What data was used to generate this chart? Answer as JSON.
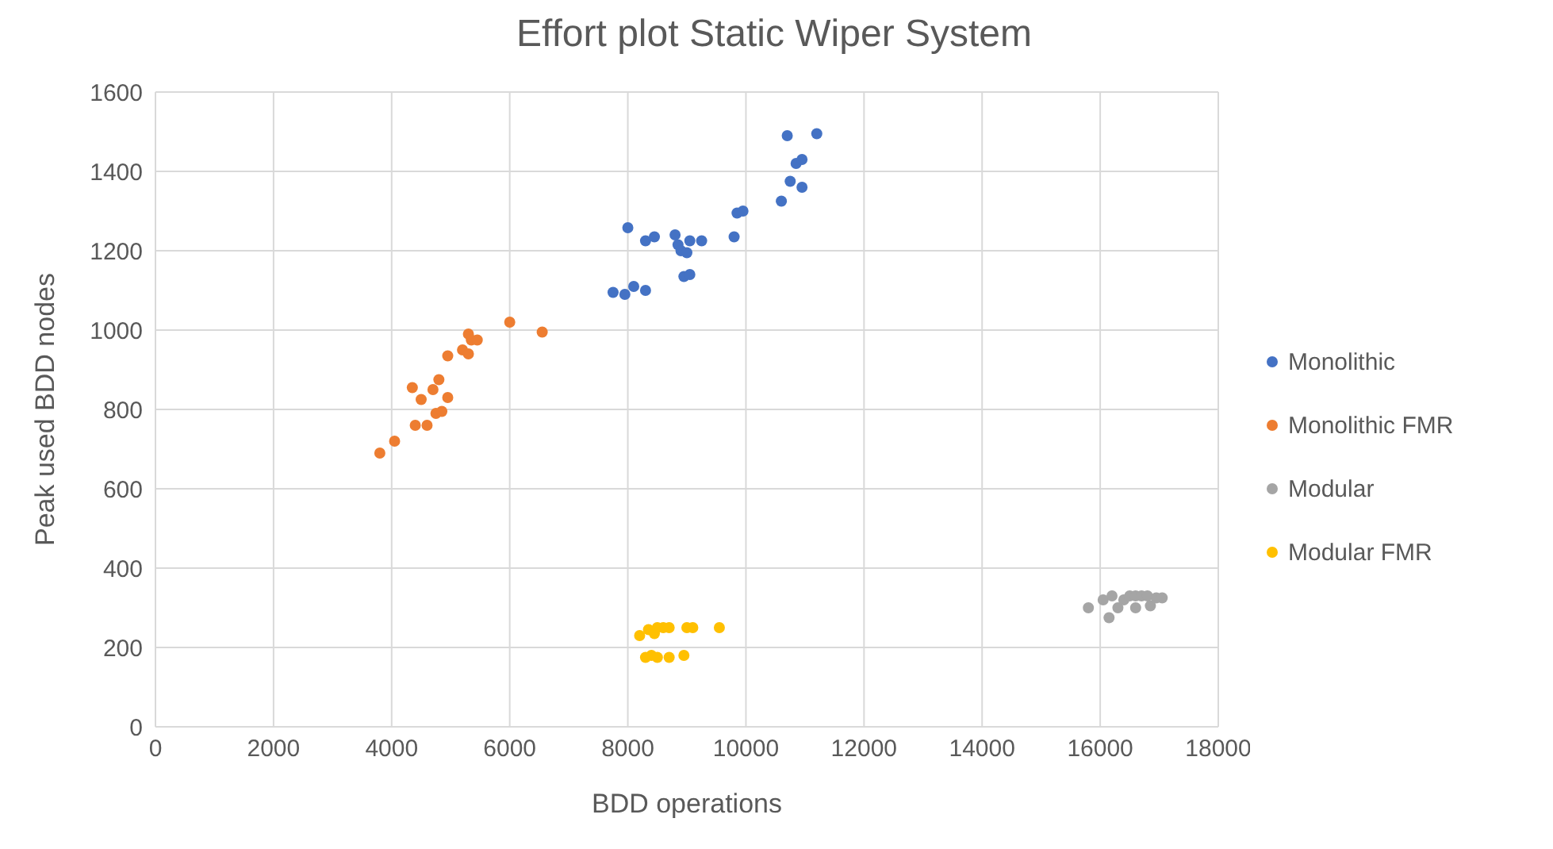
{
  "chart_data": {
    "type": "scatter",
    "title": "Effort plot Static Wiper System",
    "xlabel": "BDD operations",
    "ylabel": "Peak used BDD nodes",
    "xlim": [
      0,
      18000
    ],
    "xticks": [
      0,
      2000,
      4000,
      6000,
      8000,
      10000,
      12000,
      14000,
      16000,
      18000
    ],
    "ylim": [
      0,
      1600
    ],
    "yticks": [
      0,
      200,
      400,
      600,
      800,
      1000,
      1200,
      1400,
      1600
    ],
    "grid": true,
    "legend": "right",
    "marker": "circle",
    "series": [
      {
        "name": "Monolithic",
        "color": "#4472c4",
        "x": [
          7750,
          7950,
          8100,
          8300,
          8000,
          8300,
          8450,
          8800,
          8850,
          8900,
          9000,
          9050,
          8950,
          9050,
          9250,
          9800,
          9850,
          9950,
          10600,
          10700,
          10750,
          10850,
          10950,
          10950,
          11200
        ],
        "values": [
          1095,
          1090,
          1110,
          1100,
          1258,
          1225,
          1235,
          1240,
          1215,
          1200,
          1195,
          1225,
          1135,
          1140,
          1225,
          1235,
          1295,
          1300,
          1325,
          1490,
          1375,
          1420,
          1430,
          1360,
          1495
        ]
      },
      {
        "name": "Monolithic FMR",
        "color": "#ed7d31",
        "x": [
          3800,
          4050,
          4350,
          4400,
          4500,
          4600,
          4700,
          4750,
          4800,
          4850,
          4950,
          4950,
          5200,
          5300,
          5300,
          5350,
          5450,
          6000,
          6550
        ],
        "values": [
          690,
          720,
          855,
          760,
          825,
          760,
          850,
          790,
          875,
          795,
          830,
          935,
          950,
          940,
          990,
          975,
          975,
          1020,
          995
        ]
      },
      {
        "name": "Modular",
        "color": "#a5a5a5",
        "x": [
          15800,
          16050,
          16150,
          16200,
          16300,
          16400,
          16500,
          16600,
          16600,
          16700,
          16800,
          16850,
          16950,
          17050
        ],
        "values": [
          300,
          320,
          275,
          330,
          300,
          320,
          330,
          300,
          330,
          330,
          330,
          305,
          325,
          325
        ]
      },
      {
        "name": "Modular FMR",
        "color": "#ffc000",
        "x": [
          8200,
          8350,
          8450,
          8500,
          8600,
          8700,
          9000,
          9100,
          9550,
          8300,
          8400,
          8500,
          8700,
          8950
        ],
        "values": [
          230,
          245,
          235,
          250,
          250,
          250,
          250,
          250,
          250,
          175,
          180,
          175,
          175,
          180
        ]
      }
    ]
  }
}
